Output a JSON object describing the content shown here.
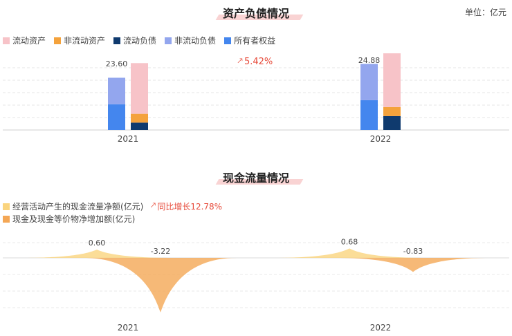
{
  "unit_label": "单位：亿元",
  "balance": {
    "title": "资产负债情况",
    "growth_label": "5.42%",
    "legend": [
      {
        "name": "流动资产",
        "color": "#f7c3c8"
      },
      {
        "name": "非流动资产",
        "color": "#f4a23c"
      },
      {
        "name": "流动负债",
        "color": "#0f3a6e"
      },
      {
        "name": "非流动负债",
        "color": "#93a6ee"
      },
      {
        "name": "所有者权益",
        "color": "#4486ee"
      }
    ]
  },
  "cashflow": {
    "title": "现金流量情况",
    "legend": [
      {
        "name": "经营活动产生的现金流量净额(亿元)",
        "color": "#fad47e"
      },
      {
        "name": "现金及现金等价物净增加额(亿元)",
        "color": "#f4a755"
      }
    ],
    "growth_label": "同比增长12.78%"
  },
  "chart_data": [
    {
      "type": "bar",
      "title": "资产负债情况",
      "categories": [
        "2021",
        "2022"
      ],
      "totals": [
        23.6,
        24.88
      ],
      "series": [
        {
          "name": "流动资产",
          "values": [
            20.1,
            21.3
          ]
        },
        {
          "name": "非流动资产",
          "values": [
            3.5,
            3.58
          ]
        },
        {
          "name": "流动负债",
          "values": [
            2.9,
            5.5
          ]
        },
        {
          "name": "非流动负债",
          "values": [
            10.5,
            14.4
          ]
        },
        {
          "name": "所有者权益",
          "values": [
            10.2,
            11.8
          ]
        }
      ]
    },
    {
      "type": "area",
      "title": "现金流量情况",
      "categories": [
        "2021",
        "2022"
      ],
      "series": [
        {
          "name": "经营活动产生的现金流量净额(亿元)",
          "values": [
            0.6,
            0.68
          ],
          "labels": [
            "0.60",
            "0.68"
          ]
        },
        {
          "name": "现金及现金等价物净增加额(亿元)",
          "values": [
            -3.22,
            -0.83
          ],
          "labels": [
            "-3.22",
            "-0.83"
          ]
        }
      ]
    }
  ]
}
